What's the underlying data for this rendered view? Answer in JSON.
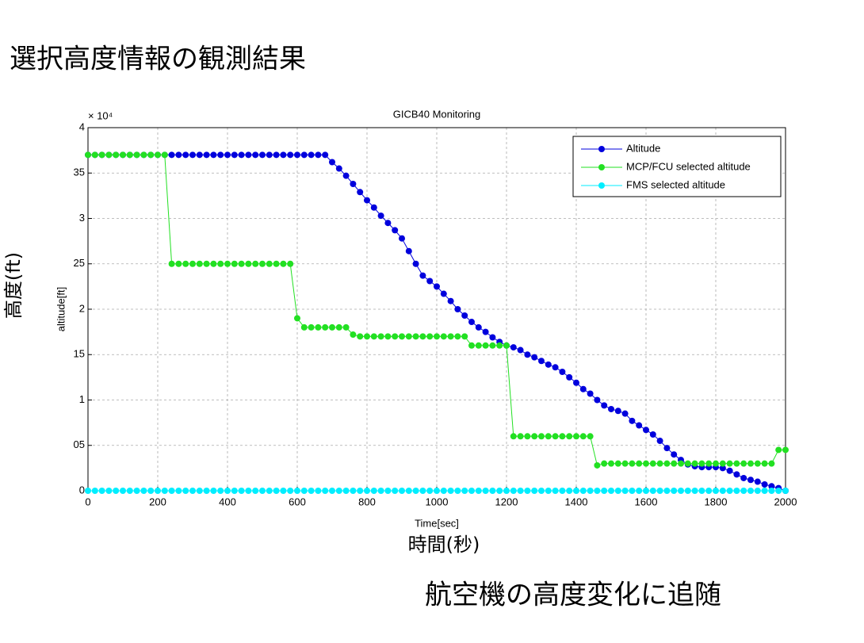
{
  "slide_title": "選択高度情報の観測結果",
  "y_caption": "高度(ft)",
  "x_caption": "時間(秒)",
  "footer": "航空機の高度変化に追随",
  "chart_data": {
    "type": "line",
    "title": "GICB40 Monitoring",
    "x_label": "Time[sec]",
    "y_label": "altitude[ft]",
    "y_exponent_label": "× 10⁴",
    "x": [
      0,
      20,
      40,
      60,
      80,
      100,
      120,
      140,
      160,
      180,
      200,
      220,
      240,
      260,
      280,
      300,
      320,
      340,
      360,
      380,
      400,
      420,
      440,
      460,
      480,
      500,
      520,
      540,
      560,
      580,
      600,
      620,
      640,
      660,
      680,
      700,
      720,
      740,
      760,
      780,
      800,
      820,
      840,
      860,
      880,
      900,
      920,
      940,
      960,
      980,
      1000,
      1020,
      1040,
      1060,
      1080,
      1100,
      1120,
      1140,
      1160,
      1180,
      1200,
      1220,
      1240,
      1260,
      1280,
      1300,
      1320,
      1340,
      1360,
      1380,
      1400,
      1420,
      1440,
      1460,
      1480,
      1500,
      1520,
      1540,
      1560,
      1580,
      1600,
      1620,
      1640,
      1660,
      1680,
      1700,
      1720,
      1740,
      1760,
      1780,
      1800,
      1820,
      1840,
      1860,
      1880,
      1900,
      1920,
      1940,
      1960,
      1980,
      2000
    ],
    "series": [
      {
        "name": "Altitude",
        "color": "#0000dd",
        "values": [
          3.7,
          3.7,
          3.7,
          3.7,
          3.7,
          3.7,
          3.7,
          3.7,
          3.7,
          3.7,
          3.7,
          3.7,
          3.7,
          3.7,
          3.7,
          3.7,
          3.7,
          3.7,
          3.7,
          3.7,
          3.7,
          3.7,
          3.7,
          3.7,
          3.7,
          3.7,
          3.7,
          3.7,
          3.7,
          3.7,
          3.7,
          3.7,
          3.7,
          3.7,
          3.7,
          3.62,
          3.55,
          3.47,
          3.38,
          3.29,
          3.2,
          3.12,
          3.03,
          2.95,
          2.87,
          2.78,
          2.64,
          2.5,
          2.37,
          2.31,
          2.25,
          2.17,
          2.09,
          2.0,
          1.93,
          1.86,
          1.8,
          1.75,
          1.69,
          1.64,
          1.6,
          1.58,
          1.55,
          1.5,
          1.47,
          1.43,
          1.39,
          1.36,
          1.31,
          1.25,
          1.19,
          1.12,
          1.07,
          1.0,
          0.94,
          0.9,
          0.88,
          0.85,
          0.77,
          0.72,
          0.67,
          0.62,
          0.55,
          0.47,
          0.4,
          0.34,
          0.29,
          0.27,
          0.26,
          0.26,
          0.26,
          0.25,
          0.22,
          0.18,
          0.14,
          0.12,
          0.1,
          0.07,
          0.05,
          0.03,
          0.0
        ]
      },
      {
        "name": "MCP/FCU selected altitude",
        "color": "#22e022",
        "values": [
          3.7,
          3.7,
          3.7,
          3.7,
          3.7,
          3.7,
          3.7,
          3.7,
          3.7,
          3.7,
          3.7,
          3.7,
          2.5,
          2.5,
          2.5,
          2.5,
          2.5,
          2.5,
          2.5,
          2.5,
          2.5,
          2.5,
          2.5,
          2.5,
          2.5,
          2.5,
          2.5,
          2.5,
          2.5,
          2.5,
          1.9,
          1.8,
          1.8,
          1.8,
          1.8,
          1.8,
          1.8,
          1.8,
          1.72,
          1.7,
          1.7,
          1.7,
          1.7,
          1.7,
          1.7,
          1.7,
          1.7,
          1.7,
          1.7,
          1.7,
          1.7,
          1.7,
          1.7,
          1.7,
          1.7,
          1.6,
          1.6,
          1.6,
          1.6,
          1.6,
          1.6,
          0.6,
          0.6,
          0.6,
          0.6,
          0.6,
          0.6,
          0.6,
          0.6,
          0.6,
          0.6,
          0.6,
          0.6,
          0.28,
          0.3,
          0.3,
          0.3,
          0.3,
          0.3,
          0.3,
          0.3,
          0.3,
          0.3,
          0.3,
          0.3,
          0.3,
          0.3,
          0.3,
          0.3,
          0.3,
          0.3,
          0.3,
          0.3,
          0.3,
          0.3,
          0.3,
          0.3,
          0.3,
          0.3,
          0.45,
          0.45
        ]
      },
      {
        "name": "FMS selected altitude",
        "color": "#00eeff",
        "values": [
          0,
          0,
          0,
          0,
          0,
          0,
          0,
          0,
          0,
          0,
          0,
          0,
          0,
          0,
          0,
          0,
          0,
          0,
          0,
          0,
          0,
          0,
          0,
          0,
          0,
          0,
          0,
          0,
          0,
          0,
          0,
          0,
          0,
          0,
          0,
          0,
          0,
          0,
          0,
          0,
          0,
          0,
          0,
          0,
          0,
          0,
          0,
          0,
          0,
          0,
          0,
          0,
          0,
          0,
          0,
          0,
          0,
          0,
          0,
          0,
          0,
          0,
          0,
          0,
          0,
          0,
          0,
          0,
          0,
          0,
          0,
          0,
          0,
          0,
          0,
          0,
          0,
          0,
          0,
          0,
          0,
          0,
          0,
          0,
          0,
          0,
          0,
          0,
          0,
          0,
          0,
          0,
          0,
          0,
          0,
          0,
          0,
          0,
          0,
          0,
          0
        ]
      }
    ],
    "xlim": [
      0,
      2000
    ],
    "xticks": [
      0,
      200,
      400,
      600,
      800,
      1000,
      1200,
      1400,
      1600,
      1800,
      2000
    ],
    "ylim": [
      0,
      4
    ],
    "yticks": [
      0,
      {
        "value": 0.5,
        "label": "05"
      },
      1,
      {
        "value": 1.5,
        "label": "15"
      },
      2,
      {
        "value": 2.5,
        "label": "25"
      },
      3,
      {
        "value": 3.5,
        "label": "35"
      },
      4
    ],
    "grid": true,
    "legend": "upper right"
  }
}
